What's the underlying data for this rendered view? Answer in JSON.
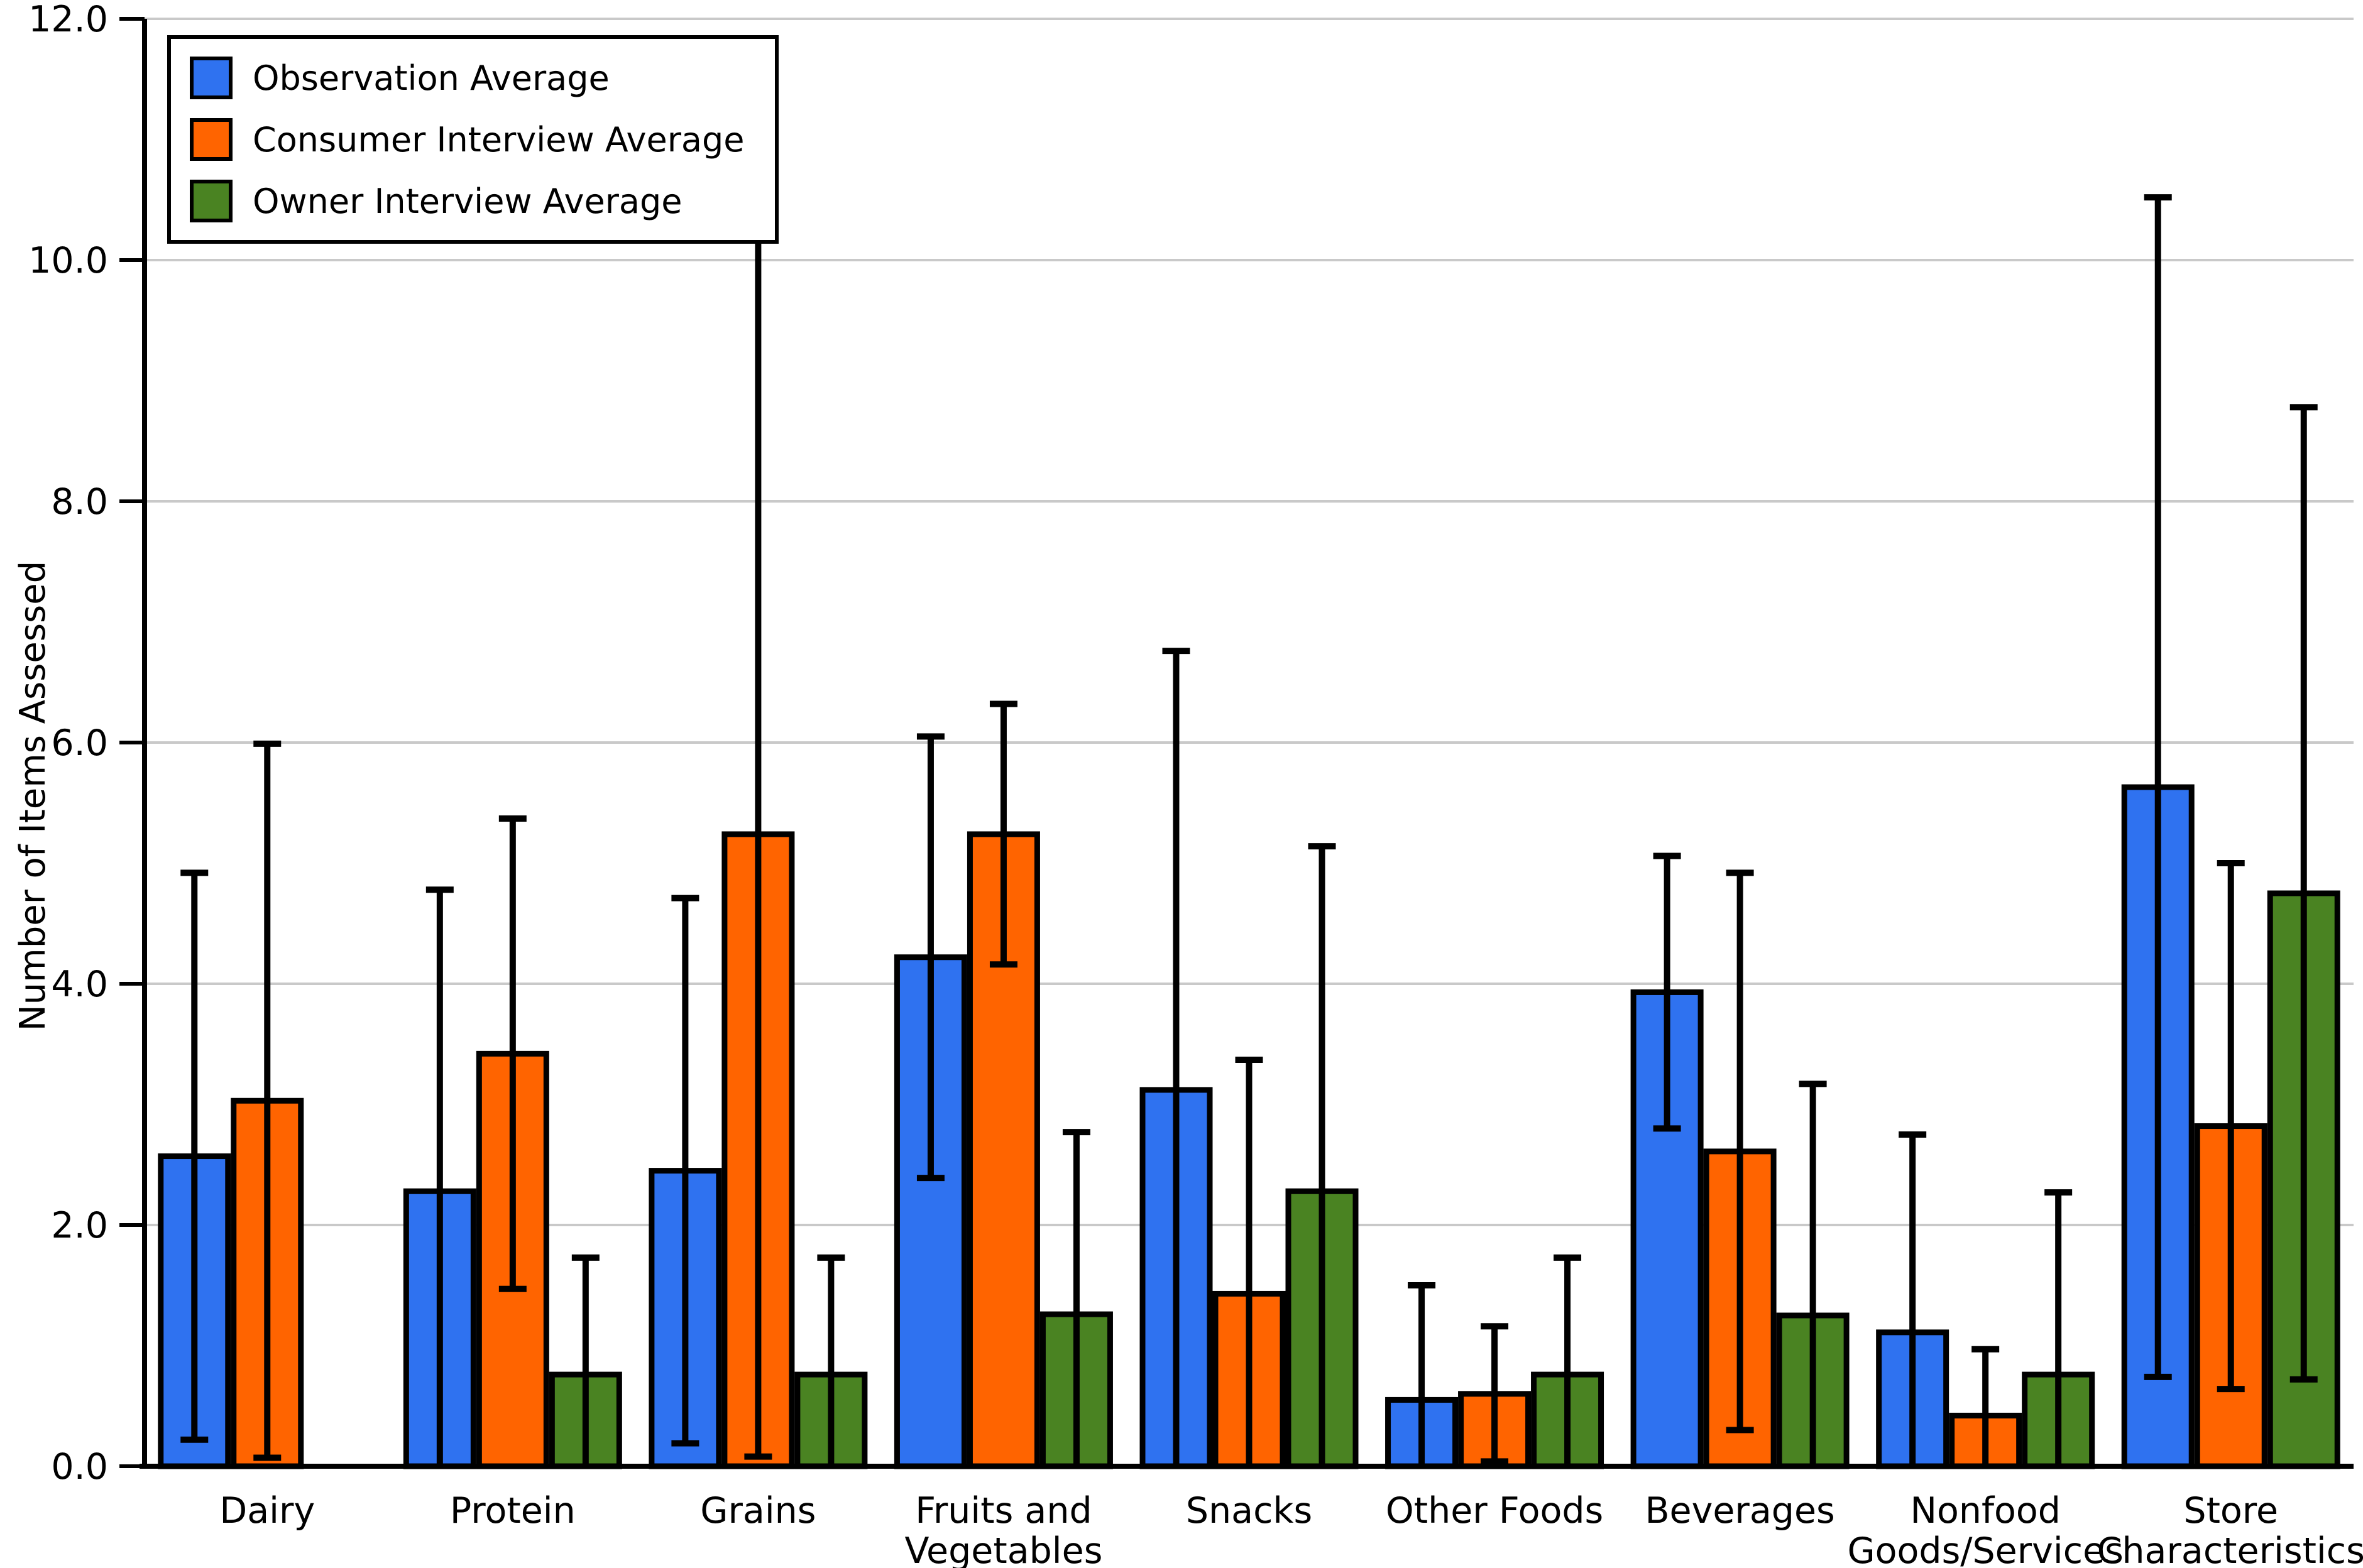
{
  "chart_data": {
    "type": "bar",
    "title": "",
    "xlabel": "",
    "ylabel": "Number of Items Assessed",
    "ylim": [
      0,
      12
    ],
    "ytick_step": 2,
    "ytick_labels": [
      "0.0",
      "2.0",
      "4.0",
      "6.0",
      "8.0",
      "10.0",
      "12.0"
    ],
    "grid": true,
    "legend_position": "upper-left",
    "error_bars": "plus-minus one SD, clipped at 0",
    "categories": [
      "Dairy",
      "Protein",
      "Grains",
      "Fruits and\nVegetables",
      "Snacks",
      "Other Foods",
      "Beverages",
      "Nonfood\nGoods/Services",
      "Store\nCharacteristics"
    ],
    "series": [
      {
        "name": "Observation Average",
        "color": "#2F72F0",
        "values": [
          2.57,
          2.28,
          2.45,
          4.22,
          3.12,
          0.55,
          3.93,
          1.11,
          5.63
        ],
        "sd": [
          2.35,
          2.5,
          2.26,
          1.83,
          3.64,
          0.95,
          1.13,
          1.64,
          4.89
        ]
      },
      {
        "name": "Consumer Interview Average",
        "color": "#FF6400",
        "values": [
          3.03,
          3.42,
          5.24,
          5.24,
          1.43,
          0.6,
          2.61,
          0.42,
          2.82
        ],
        "sd": [
          2.96,
          1.95,
          5.16,
          1.08,
          1.94,
          0.56,
          2.31,
          0.55,
          2.18
        ]
      },
      {
        "name": "Owner Interview Average",
        "color": "#4A8322",
        "values": [
          null,
          0.76,
          0.76,
          1.26,
          2.28,
          0.76,
          1.25,
          0.76,
          4.75
        ],
        "sd": [
          null,
          0.97,
          0.97,
          1.51,
          2.86,
          0.97,
          1.92,
          1.51,
          4.03
        ]
      }
    ],
    "axis_colors": {
      "spine": "#000000",
      "gridline": "#c9c9c9",
      "tick_text": "#000000"
    }
  }
}
